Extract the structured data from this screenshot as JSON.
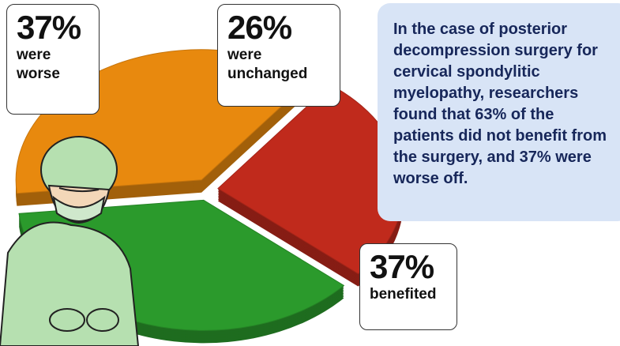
{
  "chart_data": {
    "type": "pie",
    "categories": [
      "were worse",
      "were unchanged",
      "benefited"
    ],
    "values": [
      37,
      26,
      37
    ],
    "value_labels": [
      "37%",
      "26%",
      "37%"
    ],
    "colors": [
      "#e8890e",
      "#c02a1c",
      "#2b9a2c"
    ],
    "annotation": "In the case of posterior decompression surgery for cervical spondylitic myelopathy, researchers found that 63% of the patients did not benefit from the surgery, and 37% were worse off."
  }
}
